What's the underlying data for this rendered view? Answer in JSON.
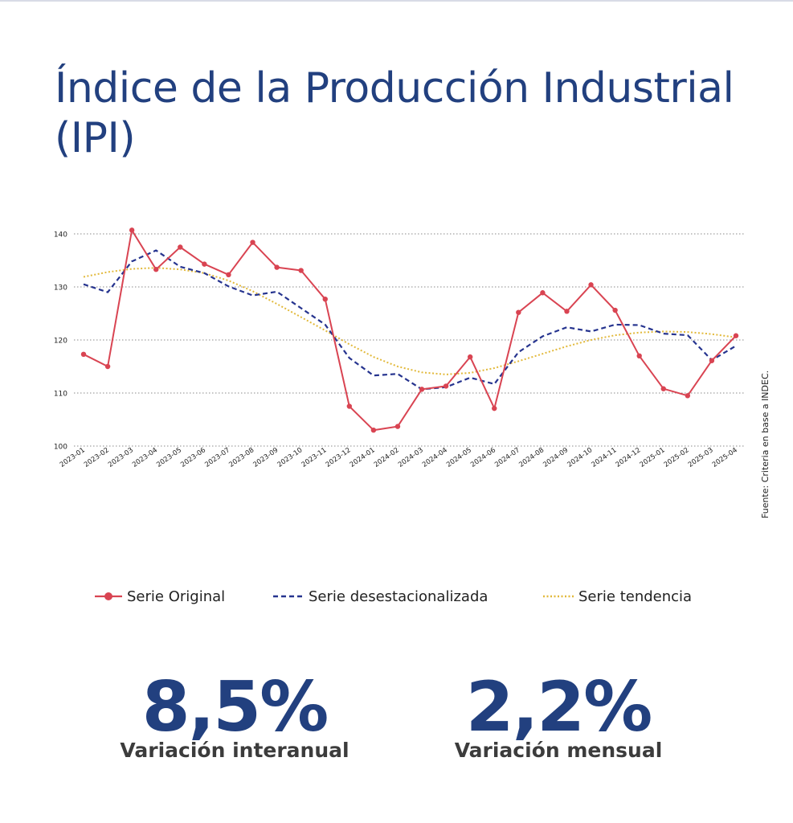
{
  "page": {
    "title": "Índice de la Producción Industrial (IPI)",
    "source": "Fuente: Criteria en base a INDEC."
  },
  "colors": {
    "title": "#22407f",
    "original": "#d94452",
    "desestacionalizada": "#26348f",
    "tendencia": "#e2b93b",
    "grid": "#8a8a8a"
  },
  "chart_data": {
    "type": "line",
    "title": "",
    "xlabel": "",
    "ylabel": "",
    "ylim": [
      100,
      140
    ],
    "yticks": [
      100,
      110,
      120,
      130,
      140
    ],
    "grid": true,
    "legend_position": "bottom",
    "categories": [
      "2023-01",
      "2023-02",
      "2023-03",
      "2023-04",
      "2023-05",
      "2023-06",
      "2023-07",
      "2023-08",
      "2023-09",
      "2023-10",
      "2023-11",
      "2023-12",
      "2024-01",
      "2024-02",
      "2024-03",
      "2024-04",
      "2024-05",
      "2024-06",
      "2024-07",
      "2024-08",
      "2024-09",
      "2024-10",
      "2024-11",
      "2024-12",
      "2025-01",
      "2025-02",
      "2025-03",
      "2025-04"
    ],
    "series": [
      {
        "name": "Serie Original",
        "style": "solid-markers",
        "color": "#d94452",
        "values": [
          117.3,
          115.0,
          140.7,
          133.3,
          137.5,
          134.3,
          132.3,
          138.4,
          133.7,
          133.1,
          127.7,
          107.5,
          103.0,
          103.7,
          110.7,
          111.3,
          116.8,
          107.1,
          125.2,
          128.9,
          125.4,
          130.4,
          125.6,
          117.0,
          110.8,
          109.5,
          116.1,
          120.8
        ]
      },
      {
        "name": "Serie desestacionalizada",
        "style": "dashed",
        "color": "#26348f",
        "values": [
          130.5,
          129.0,
          134.8,
          136.9,
          133.8,
          132.6,
          130.1,
          128.4,
          129.1,
          126.0,
          122.9,
          116.6,
          113.3,
          113.6,
          110.7,
          111.1,
          112.9,
          111.7,
          117.7,
          120.7,
          122.4,
          121.6,
          122.9,
          122.8,
          121.2,
          120.9,
          116.2,
          118.9
        ]
      },
      {
        "name": "Serie tendencia",
        "style": "dotted",
        "color": "#e2b93b",
        "values": [
          131.9,
          132.8,
          133.4,
          133.6,
          133.3,
          132.6,
          131.2,
          129.2,
          126.8,
          124.3,
          121.8,
          119.2,
          116.8,
          115.0,
          113.9,
          113.5,
          113.8,
          114.7,
          116.0,
          117.4,
          118.8,
          120.0,
          120.9,
          121.4,
          121.6,
          121.5,
          121.1,
          120.5
        ]
      }
    ]
  },
  "kpis": [
    {
      "value": "8,5%",
      "label": "Variación interanual"
    },
    {
      "value": "2,2%",
      "label": "Variación mensual"
    }
  ]
}
